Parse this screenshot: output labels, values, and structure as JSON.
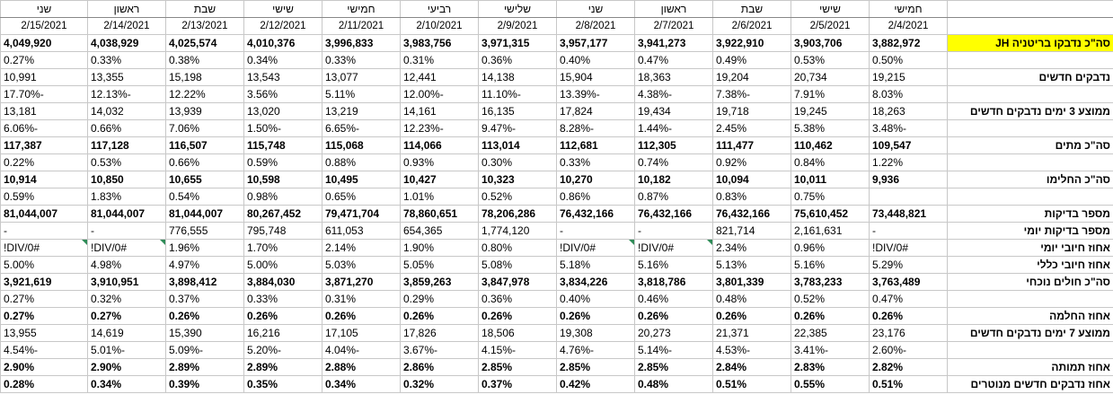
{
  "days": [
    "חמישי",
    "שישי",
    "שבת",
    "ראשון",
    "שני",
    "שלישי",
    "רביעי",
    "חמישי",
    "שישי",
    "שבת",
    "ראשון",
    "שני"
  ],
  "dates": [
    "2/4/2021",
    "2/5/2021",
    "2/6/2021",
    "2/7/2021",
    "2/8/2021",
    "2/9/2021",
    "2/10/2021",
    "2/11/2021",
    "2/12/2021",
    "2/13/2021",
    "2/14/2021",
    "2/15/2021"
  ],
  "rows": [
    {
      "label": "סה\"כ נדבקו בריטניה JH",
      "style": "bold yellowlabel",
      "values": [
        "3,882,972",
        "3,903,706",
        "3,922,910",
        "3,941,273",
        "3,957,177",
        "3,971,315",
        "3,983,756",
        "3,996,833",
        "4,010,376",
        "4,025,574",
        "4,038,929",
        "4,049,920"
      ]
    },
    {
      "label": "",
      "style": "",
      "values": [
        "0.50%",
        "0.53%",
        "0.49%",
        "0.47%",
        "0.40%",
        "0.36%",
        "0.31%",
        "0.33%",
        "0.34%",
        "0.38%",
        "0.33%",
        "0.27%"
      ]
    },
    {
      "label": "נדבקים חדשים",
      "style": "red",
      "values": [
        "19,215",
        "20,734",
        "19,204",
        "18,363",
        "15,904",
        "14,138",
        "12,441",
        "13,077",
        "13,543",
        "15,198",
        "13,355",
        "10,991"
      ]
    },
    {
      "label": "",
      "style": "",
      "values": [
        "8.03%",
        "7.91%",
        "-7.38%",
        "-4.38%",
        "-13.39%",
        "-11.10%",
        "-12.00%",
        "5.11%",
        "3.56%",
        "12.22%",
        "-12.13%",
        "-17.70%"
      ]
    },
    {
      "label": "ממוצע 3 ימים נדבקים חדשים",
      "style": "red",
      "values": [
        "18,263",
        "19,245",
        "19,718",
        "19,434",
        "17,824",
        "16,135",
        "14,161",
        "13,219",
        "13,020",
        "13,939",
        "14,032",
        "13,181"
      ]
    },
    {
      "label": "",
      "style": "",
      "values": [
        "-3.48%",
        "5.38%",
        "2.45%",
        "-1.44%",
        "-8.28%",
        "-9.47%",
        "-12.23%",
        "-6.65%",
        "-1.50%",
        "7.06%",
        "0.66%",
        "-6.06%"
      ]
    },
    {
      "label": "סה\"כ מתים",
      "style": "bold",
      "values": [
        "109,547",
        "110,462",
        "111,477",
        "112,305",
        "112,681",
        "113,014",
        "114,066",
        "115,068",
        "115,748",
        "116,507",
        "117,128",
        "117,387"
      ]
    },
    {
      "label": "",
      "style": "",
      "values": [
        "1.22%",
        "0.84%",
        "0.92%",
        "0.74%",
        "0.33%",
        "0.30%",
        "0.93%",
        "0.88%",
        "0.59%",
        "0.66%",
        "0.53%",
        "0.22%"
      ]
    },
    {
      "label": "סה\"כ החלימו",
      "style": "bold",
      "values": [
        "9,936",
        "10,011",
        "10,094",
        "10,182",
        "10,270",
        "10,323",
        "10,427",
        "10,495",
        "10,598",
        "10,655",
        "10,850",
        "10,914"
      ]
    },
    {
      "label": "",
      "style": "",
      "values": [
        "",
        "0.75%",
        "0.83%",
        "0.87%",
        "0.86%",
        "0.52%",
        "1.01%",
        "0.65%",
        "0.98%",
        "0.54%",
        "1.83%",
        "0.59%"
      ]
    },
    {
      "label": "מספר בדיקות",
      "style": "bold blue",
      "values": [
        "73,448,821",
        "75,610,452",
        "76,432,166",
        "76,432,166",
        "76,432,166",
        "78,206,286",
        "78,860,651",
        "79,471,704",
        "80,267,452",
        "81,044,007",
        "81,044,007",
        "81,044,007"
      ]
    },
    {
      "label": "מספר בדיקות יומי",
      "style": "",
      "values": [
        "-",
        "2,161,631",
        "821,714",
        "-",
        "-",
        "1,774,120",
        "654,365",
        "611,053",
        "795,748",
        "776,555",
        "-",
        "-"
      ]
    },
    {
      "label": "אחוז חיובי יומי",
      "style": "",
      "values": [
        "#DIV/0!",
        "0.96%",
        "2.34%",
        "#DIV/0!",
        "#DIV/0!",
        "0.80%",
        "1.90%",
        "2.14%",
        "1.70%",
        "1.96%",
        "#DIV/0!",
        "#DIV/0!"
      ]
    },
    {
      "label": "אחוז חיובי כללי",
      "style": "",
      "values": [
        "5.29%",
        "5.16%",
        "5.13%",
        "5.16%",
        "5.18%",
        "5.08%",
        "5.05%",
        "5.03%",
        "5.00%",
        "4.97%",
        "4.98%",
        "5.00%"
      ]
    },
    {
      "label": "סה\"כ חולים נוכחי",
      "style": "bold red",
      "values": [
        "3,763,489",
        "3,783,233",
        "3,801,339",
        "3,818,786",
        "3,834,226",
        "3,847,978",
        "3,859,263",
        "3,871,270",
        "3,884,030",
        "3,898,412",
        "3,910,951",
        "3,921,619"
      ]
    },
    {
      "label": "",
      "style": "",
      "values": [
        "0.47%",
        "0.52%",
        "0.48%",
        "0.46%",
        "0.40%",
        "0.36%",
        "0.29%",
        "0.31%",
        "0.33%",
        "0.37%",
        "0.32%",
        "0.27%"
      ]
    },
    {
      "label": "אחוז החלמה",
      "style": "bold red",
      "values": [
        "0.26%",
        "0.26%",
        "0.26%",
        "0.26%",
        "0.26%",
        "0.26%",
        "0.26%",
        "0.26%",
        "0.26%",
        "0.26%",
        "0.27%",
        "0.27%"
      ]
    },
    {
      "label": "ממוצע 7 ימים נדבקים חדשים",
      "style": "red",
      "values": [
        "23,176",
        "22,385",
        "21,371",
        "20,273",
        "19,308",
        "18,506",
        "17,826",
        "17,105",
        "16,216",
        "15,390",
        "14,619",
        "13,955"
      ]
    },
    {
      "label": "",
      "style": "",
      "values": [
        "-2.60%",
        "-3.41%",
        "-4.53%",
        "-5.14%",
        "-4.76%",
        "-4.15%",
        "-3.67%",
        "-4.04%",
        "-5.20%",
        "-5.09%",
        "-5.01%",
        "-4.54%"
      ]
    },
    {
      "label": "אחוז תמותה",
      "style": "bold red",
      "values": [
        "2.82%",
        "2.83%",
        "2.84%",
        "2.85%",
        "2.85%",
        "2.85%",
        "2.86%",
        "2.88%",
        "2.89%",
        "2.89%",
        "2.90%",
        "2.90%"
      ]
    },
    {
      "label": "אחוז נדבקים חדשים מנוטרים",
      "style": "bold red",
      "values": [
        "0.51%",
        "0.55%",
        "0.51%",
        "0.48%",
        "0.42%",
        "0.37%",
        "0.32%",
        "0.34%",
        "0.35%",
        "0.39%",
        "0.34%",
        "0.28%"
      ]
    }
  ]
}
